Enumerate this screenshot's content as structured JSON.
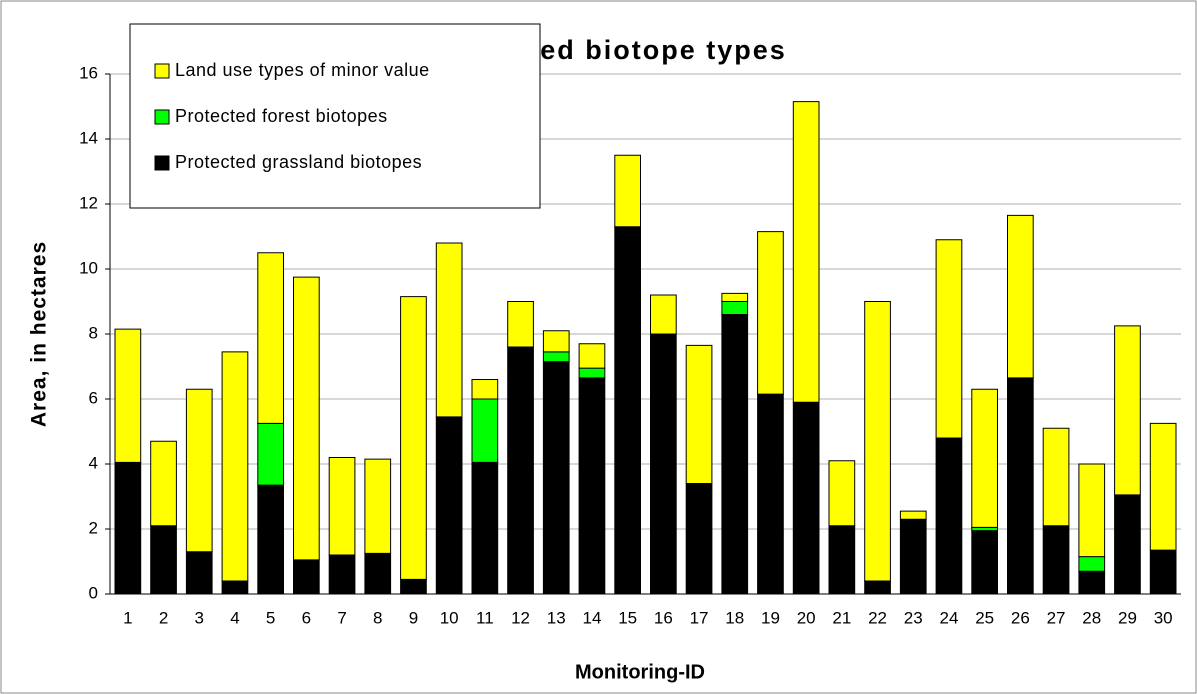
{
  "chart_data": {
    "type": "stacked_bar",
    "title": "Protected biotope types",
    "x_label": "Monitoring-ID",
    "y_label": "Area, in hectares",
    "categories": [
      "1",
      "2",
      "3",
      "4",
      "5",
      "6",
      "7",
      "8",
      "9",
      "10",
      "11",
      "12",
      "13",
      "14",
      "15",
      "16",
      "17",
      "18",
      "19",
      "20",
      "21",
      "22",
      "23",
      "24",
      "25",
      "26",
      "27",
      "28",
      "29",
      "30"
    ],
    "series": [
      {
        "name": "Protected grassland biotopes",
        "color": "#000000",
        "values": [
          4.05,
          2.1,
          1.3,
          0.4,
          3.35,
          1.05,
          1.2,
          1.25,
          0.45,
          5.45,
          4.05,
          7.6,
          7.15,
          6.65,
          11.3,
          8.0,
          3.4,
          8.6,
          6.15,
          5.9,
          2.1,
          0.4,
          2.3,
          4.8,
          1.95,
          6.65,
          2.1,
          0.7,
          3.05,
          1.35
        ]
      },
      {
        "name": "Protected forest biotopes",
        "color": "#00ff00",
        "values": [
          0,
          0,
          0,
          0,
          1.9,
          0,
          0,
          0,
          0,
          0,
          1.95,
          0,
          0.3,
          0.3,
          0,
          0,
          0,
          0.4,
          0,
          0,
          0,
          0,
          0,
          0,
          0.1,
          0,
          0,
          0.45,
          0,
          0
        ]
      },
      {
        "name": "Land use types of minor value",
        "color": "#ffff00",
        "values": [
          4.1,
          2.6,
          5.0,
          7.05,
          5.25,
          8.7,
          3.0,
          2.9,
          8.7,
          5.35,
          0.6,
          1.4,
          0.65,
          0.75,
          2.2,
          1.2,
          4.25,
          0.25,
          5.0,
          9.25,
          2.0,
          8.6,
          0.25,
          6.1,
          4.25,
          5.0,
          3.0,
          2.85,
          5.2,
          3.9
        ]
      }
    ],
    "ylim": [
      0,
      16
    ],
    "yticks": [
      0,
      2,
      4,
      6,
      8,
      10,
      12,
      14,
      16
    ],
    "grid": true,
    "legend": "top-left"
  }
}
